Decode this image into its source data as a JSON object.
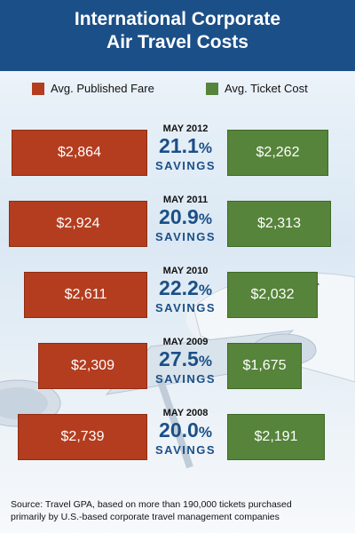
{
  "title_lines": [
    "International Corporate",
    "Air Travel Costs"
  ],
  "legend": {
    "fare_label": "Avg. Published Fare",
    "ticket_label": "Avg. Ticket Cost"
  },
  "colors": {
    "header": "#1b4f87",
    "fare": "#b43d1f",
    "ticket": "#56843a",
    "accent_text": "#1b4f87"
  },
  "footer": {
    "line1": "Source: Travel GPA, based on more than 190,000 tickets purchased",
    "line2": "primarily by U.S.-based corporate travel management companies"
  },
  "chart_data": {
    "type": "bar",
    "title": "International Corporate Air Travel Costs",
    "categories": [
      "MAY 2012",
      "MAY 2011",
      "MAY 2010",
      "MAY 2009",
      "MAY 2008"
    ],
    "series": [
      {
        "name": "Avg. Published Fare",
        "values": [
          2864,
          2924,
          2611,
          2309,
          2739
        ],
        "labels": [
          "$2,864",
          "$2,924",
          "$2,611",
          "$2,309",
          "$2,739"
        ]
      },
      {
        "name": "Avg. Ticket Cost",
        "values": [
          2262,
          2313,
          2032,
          1675,
          2191
        ],
        "labels": [
          "$2,262",
          "$2,313",
          "$2,032",
          "$1,675",
          "$2,191"
        ]
      }
    ],
    "savings": [
      {
        "value": "21.1",
        "sign": "%",
        "word": "SAVINGS"
      },
      {
        "value": "20.9",
        "sign": "%",
        "word": "SAVINGS"
      },
      {
        "value": "22.2",
        "sign": "%",
        "word": "SAVINGS"
      },
      {
        "value": "27.5",
        "sign": "%",
        "word": "SAVINGS"
      },
      {
        "value": "20.0",
        "sign": "%",
        "word": "SAVINGS"
      }
    ],
    "legend_position": "top"
  }
}
